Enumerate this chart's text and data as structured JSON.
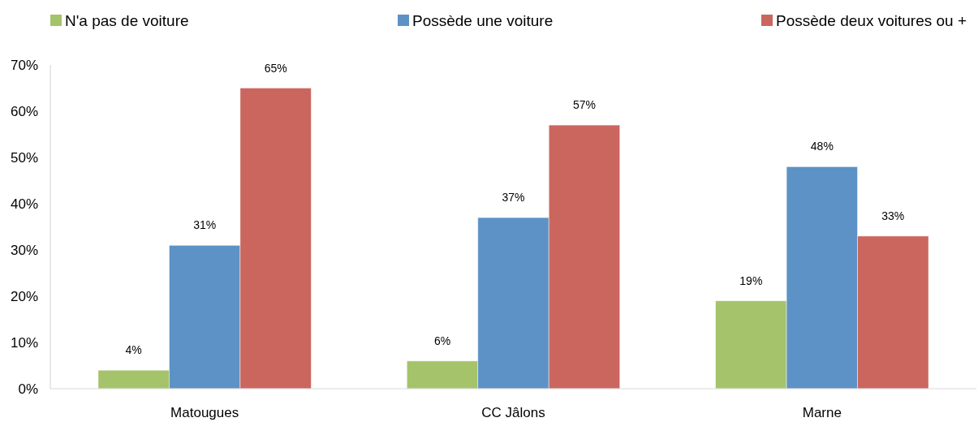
{
  "chart_data": {
    "type": "bar",
    "categories": [
      "Matougues",
      "CC Jâlons",
      "Marne"
    ],
    "series": [
      {
        "name": "N'a pas de voiture",
        "color": "#a5c36a",
        "values": [
          4,
          6,
          19
        ],
        "value_labels": [
          "4%",
          "6%",
          "19%"
        ]
      },
      {
        "name": "Possède une voiture",
        "color": "#5d92c6",
        "values": [
          31,
          37,
          48
        ],
        "value_labels": [
          "31%",
          "37%",
          "48%"
        ]
      },
      {
        "name": "Possède deux voitures ou +",
        "color": "#cb665e",
        "values": [
          65,
          57,
          33
        ],
        "value_labels": [
          "65%",
          "57%",
          "33%"
        ]
      }
    ],
    "ylim": [
      0,
      70
    ],
    "yticks": [
      {
        "value": 0,
        "label": "0%"
      },
      {
        "value": 10,
        "label": "10%"
      },
      {
        "value": 20,
        "label": "20%"
      },
      {
        "value": 30,
        "label": "30%"
      },
      {
        "value": 40,
        "label": "40%"
      },
      {
        "value": 50,
        "label": "50%"
      },
      {
        "value": 60,
        "label": "60%"
      },
      {
        "value": 70,
        "label": "70%"
      }
    ],
    "grid": false,
    "legend": "top"
  }
}
